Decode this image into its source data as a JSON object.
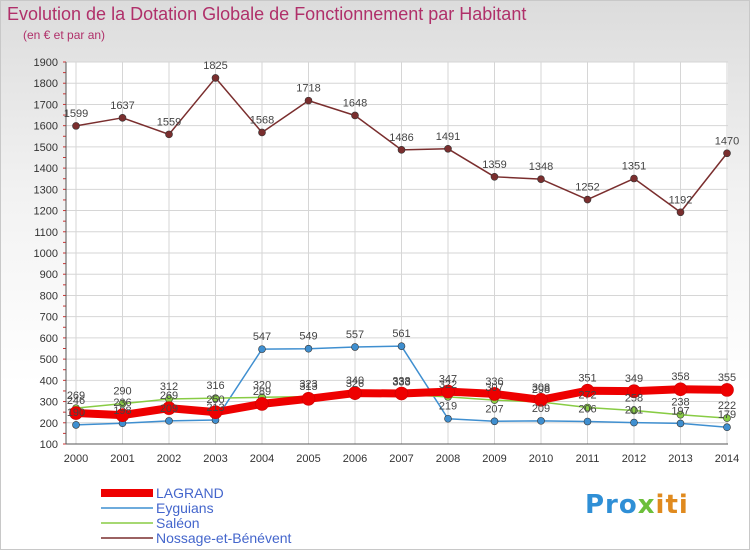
{
  "chart_data": {
    "type": "line",
    "title": "Evolution de la Dotation Globale de Fonctionnement par Habitant",
    "subtitle": "(en € et par an)",
    "x": [
      "2000",
      "2001",
      "2002",
      "2003",
      "2004",
      "2005",
      "2006",
      "2007",
      "2008",
      "2009",
      "2010",
      "2011",
      "2012",
      "2013",
      "2014"
    ],
    "ylim": [
      100,
      1900
    ],
    "yticks": [
      100,
      200,
      300,
      400,
      500,
      600,
      700,
      800,
      900,
      1000,
      1100,
      1200,
      1300,
      1400,
      1500,
      1600,
      1700,
      1800,
      1900
    ],
    "grid": true,
    "legend_position": "bottom-left",
    "series": [
      {
        "name": "Nossage-et-Bénévent",
        "color": "#7a2e2e",
        "values": [
          1599,
          1637,
          1559,
          1825,
          1568,
          1718,
          1648,
          1486,
          1491,
          1359,
          1348,
          1252,
          1351,
          1192,
          1470
        ]
      },
      {
        "name": "Eyguians",
        "color": "#3f8fd0",
        "values": [
          190,
          198,
          209,
          213,
          547,
          549,
          557,
          561,
          219,
          207,
          209,
          206,
          201,
          197,
          179
        ]
      },
      {
        "name": "Saléon",
        "color": "#88cc44",
        "values": [
          269,
          290,
          312,
          316,
          320,
          323,
          326,
          333,
          322,
          307,
          298,
          272,
          258,
          238,
          222
        ]
      },
      {
        "name": "LAGRAND",
        "color": "#ee0000",
        "values": [
          246,
          236,
          269,
          250,
          289,
          313,
          340,
          338,
          347,
          336,
          308,
          351,
          349,
          358,
          355
        ]
      }
    ]
  },
  "legend_labels": [
    "LAGRAND",
    "Eyguians",
    "Saléon",
    "Nossage-et-Bénévent"
  ],
  "logo_text": {
    "p1": "Pro",
    "p2": "x",
    "p3": "iti"
  }
}
